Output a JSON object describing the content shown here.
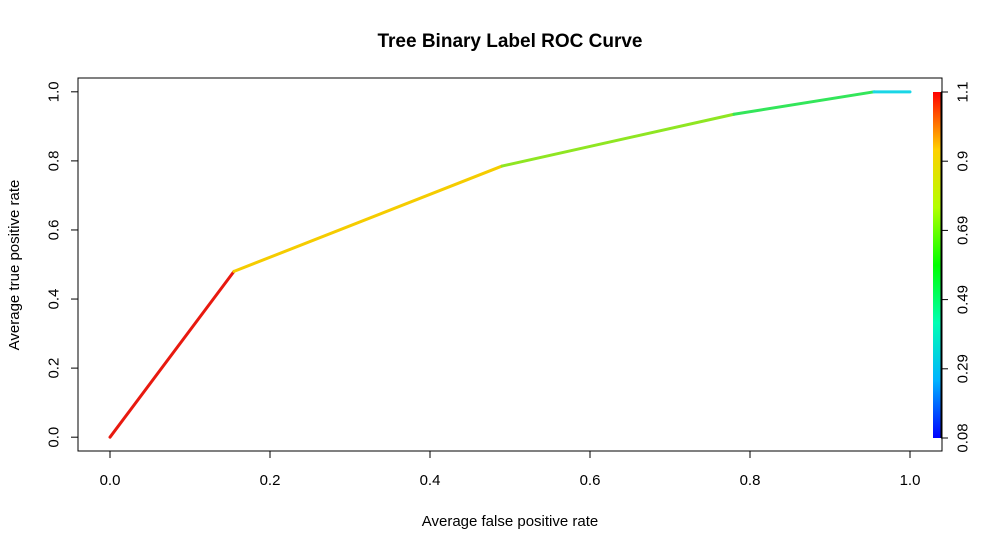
{
  "chart_data": {
    "type": "line",
    "title": "Tree Binary Label ROC Curve",
    "xlabel": "Average false positive rate",
    "ylabel": "Average true positive rate",
    "xlim": [
      -0.04,
      1.04
    ],
    "ylim": [
      -0.04,
      1.04
    ],
    "x_ticks": [
      "0.0",
      "0.2",
      "0.4",
      "0.6",
      "0.8",
      "1.0"
    ],
    "y_ticks": [
      "0.0",
      "0.2",
      "0.4",
      "0.6",
      "0.8",
      "1.0"
    ],
    "grid": false,
    "series": [
      {
        "x": [
          0.0,
          0.155,
          0.49,
          0.78,
          0.955,
          1.0
        ],
        "y": [
          0.0,
          0.48,
          0.785,
          0.935,
          1.0,
          1.0
        ],
        "segment_colors": [
          "#e8190f",
          "#f5cc00",
          "#8fe622",
          "#33e65a",
          "#1ad6e6"
        ]
      }
    ],
    "colorbar": {
      "placement": "right",
      "labels": [
        "0.08",
        "0.29",
        "0.49",
        "0.69",
        "0.9",
        "1.1"
      ],
      "gradient": [
        "#0000ff",
        "#00b3ff",
        "#00ffb3",
        "#00ff00",
        "#b3ff00",
        "#ffd000",
        "#ff0000"
      ]
    }
  }
}
